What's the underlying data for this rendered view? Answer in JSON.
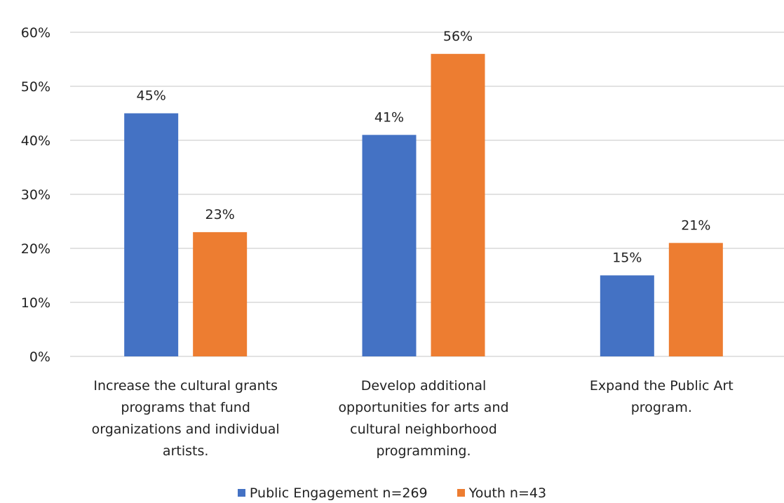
{
  "chart_data": {
    "type": "bar",
    "categories": [
      [
        "Increase the cultural grants",
        "programs that fund",
        "organizations and individual",
        "artists."
      ],
      [
        "Develop additional",
        "opportunities for arts and",
        "cultural neighborhood",
        "programming."
      ],
      [
        "Expand the Public Art",
        "program."
      ]
    ],
    "series": [
      {
        "name": "Public Engagement n=269",
        "color": "#4472C4",
        "values": [
          45,
          41,
          15
        ],
        "labels": [
          "45%",
          "41%",
          "15%"
        ]
      },
      {
        "name": "Youth n=43",
        "color": "#ED7D31",
        "values": [
          23,
          56,
          21
        ],
        "labels": [
          "23%",
          "56%",
          "21%"
        ]
      }
    ],
    "ylim": [
      0,
      60
    ],
    "yticks": [
      0,
      10,
      20,
      30,
      40,
      50,
      60
    ],
    "ytick_labels": [
      "0%",
      "10%",
      "20%",
      "30%",
      "40%",
      "50%",
      "60%"
    ],
    "grid": true,
    "legend_position": "bottom",
    "title": "",
    "xlabel": "",
    "ylabel": ""
  }
}
